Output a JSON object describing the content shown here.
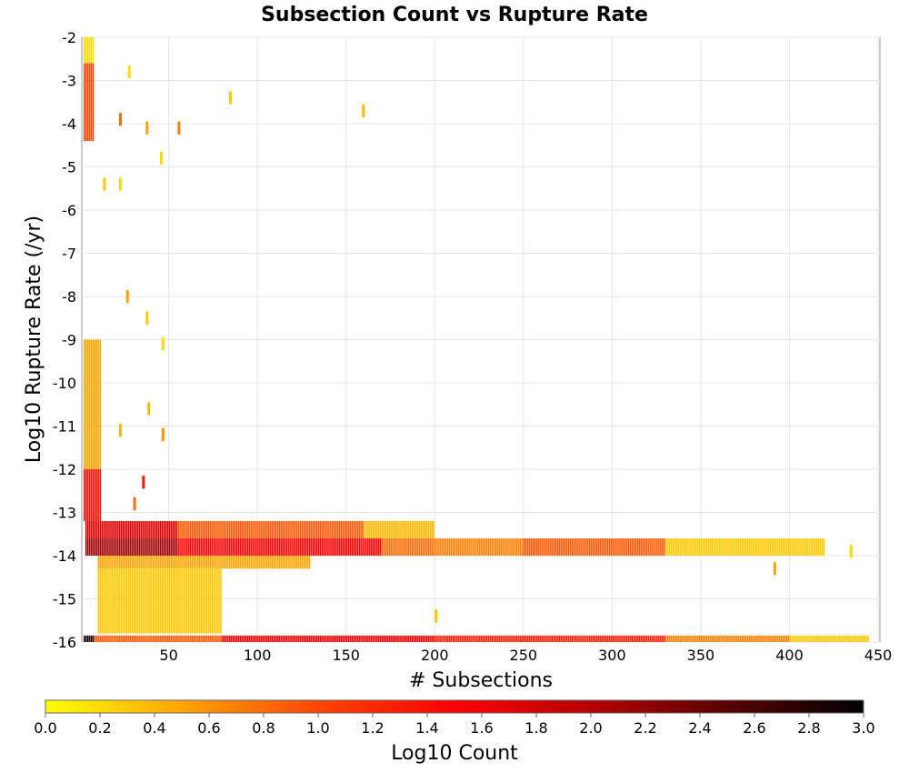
{
  "chart_data": {
    "type": "heatmap",
    "title": "Subsection Count vs Rupture Rate",
    "xlabel": "# Subsections",
    "ylabel": "Log10 Rupture Rate (/yr)",
    "xlim": [
      1,
      451
    ],
    "ylim": [
      -16,
      -2
    ],
    "x_ticks": [
      "50",
      "100",
      "150",
      "200",
      "250",
      "300",
      "350",
      "400",
      "450"
    ],
    "y_ticks": [
      "-2",
      "-3",
      "-4",
      "-5",
      "-6",
      "-7",
      "-8",
      "-9",
      "-10",
      "-11",
      "-12",
      "-13",
      "-14",
      "-15",
      "-16"
    ],
    "grid": true,
    "colorbar": {
      "label": "Log10 Count",
      "min": 0.0,
      "max": 3.0,
      "ticks": [
        "0.0",
        "0.2",
        "0.4",
        "0.6",
        "0.8",
        "1.0",
        "1.2",
        "1.4",
        "1.6",
        "1.8",
        "2.0",
        "2.2",
        "2.4",
        "2.6",
        "2.8",
        "3.0"
      ],
      "colors": [
        "#ffff00",
        "#ffa500",
        "#ff4500",
        "#ff0000",
        "#b40000",
        "#5a0000",
        "#000000"
      ]
    },
    "regions": [
      {
        "x": [
          2,
          8
        ],
        "y": [
          -16,
          -15.85
        ],
        "log_count": 2.8
      },
      {
        "x": [
          8,
          80
        ],
        "y": [
          -16,
          -15.85
        ],
        "log_count": 0.9
      },
      {
        "x": [
          80,
          200
        ],
        "y": [
          -16,
          -15.85
        ],
        "log_count": 1.6
      },
      {
        "x": [
          200,
          330
        ],
        "y": [
          -16,
          -15.85
        ],
        "log_count": 1.3
      },
      {
        "x": [
          330,
          400
        ],
        "y": [
          -16,
          -15.85
        ],
        "log_count": 0.7
      },
      {
        "x": [
          400,
          445
        ],
        "y": [
          -16,
          -15.85
        ],
        "log_count": 0.3
      },
      {
        "x": [
          3,
          55
        ],
        "y": [
          -13.6,
          -13.2
        ],
        "log_count": 1.7
      },
      {
        "x": [
          55,
          160
        ],
        "y": [
          -13.6,
          -13.2
        ],
        "log_count": 0.9
      },
      {
        "x": [
          160,
          200
        ],
        "y": [
          -13.6,
          -13.2
        ],
        "log_count": 0.4
      },
      {
        "x": [
          3,
          55
        ],
        "y": [
          -14.0,
          -13.6
        ],
        "log_count": 2.1
      },
      {
        "x": [
          55,
          170
        ],
        "y": [
          -14.0,
          -13.6
        ],
        "log_count": 1.5
      },
      {
        "x": [
          170,
          200
        ],
        "y": [
          -14.0,
          -13.6
        ],
        "log_count": 0.8
      },
      {
        "x": [
          200,
          250
        ],
        "y": [
          -14.0,
          -13.6
        ],
        "log_count": 0.7
      },
      {
        "x": [
          250,
          330
        ],
        "y": [
          -14.0,
          -13.6
        ],
        "log_count": 0.9
      },
      {
        "x": [
          330,
          420
        ],
        "y": [
          -14.0,
          -13.6
        ],
        "log_count": 0.3
      },
      {
        "x": [
          10,
          130
        ],
        "y": [
          -14.3,
          -14.0
        ],
        "log_count": 0.5
      },
      {
        "x": [
          10,
          80
        ],
        "y": [
          -15.8,
          -14.3
        ],
        "log_count": 0.3
      },
      {
        "x": [
          2,
          12
        ],
        "y": [
          -13.2,
          -12.0
        ],
        "log_count": 1.4
      },
      {
        "x": [
          2,
          12
        ],
        "y": [
          -12.0,
          -9.0
        ],
        "log_count": 0.5
      },
      {
        "x": [
          2,
          8
        ],
        "y": [
          -4.4,
          -2.6
        ],
        "log_count": 1.0
      },
      {
        "x": [
          2,
          8
        ],
        "y": [
          -2.6,
          -2.0
        ],
        "log_count": 0.2
      }
    ],
    "points": [
      {
        "x": 22,
        "y": -3.9,
        "log_count": 0.8
      },
      {
        "x": 27,
        "y": -2.8,
        "log_count": 0.2
      },
      {
        "x": 37,
        "y": -4.1,
        "log_count": 0.5
      },
      {
        "x": 55,
        "y": -4.1,
        "log_count": 0.7
      },
      {
        "x": 84,
        "y": -3.4,
        "log_count": 0.3
      },
      {
        "x": 159,
        "y": -3.7,
        "log_count": 0.4
      },
      {
        "x": 45,
        "y": -4.8,
        "log_count": 0.2
      },
      {
        "x": 13,
        "y": -5.4,
        "log_count": 0.3
      },
      {
        "x": 22,
        "y": -5.4,
        "log_count": 0.2
      },
      {
        "x": 26,
        "y": -8.0,
        "log_count": 0.5
      },
      {
        "x": 37,
        "y": -8.5,
        "log_count": 0.3
      },
      {
        "x": 46,
        "y": -9.1,
        "log_count": 0.2
      },
      {
        "x": 38,
        "y": -10.6,
        "log_count": 0.4
      },
      {
        "x": 46,
        "y": -11.2,
        "log_count": 0.6
      },
      {
        "x": 22,
        "y": -11.1,
        "log_count": 0.4
      },
      {
        "x": 35,
        "y": -12.3,
        "log_count": 1.3
      },
      {
        "x": 30,
        "y": -12.8,
        "log_count": 0.8
      },
      {
        "x": 391,
        "y": -14.3,
        "log_count": 0.5
      },
      {
        "x": 434,
        "y": -13.9,
        "log_count": 0.2
      },
      {
        "x": 200,
        "y": -15.4,
        "log_count": 0.3
      }
    ]
  }
}
